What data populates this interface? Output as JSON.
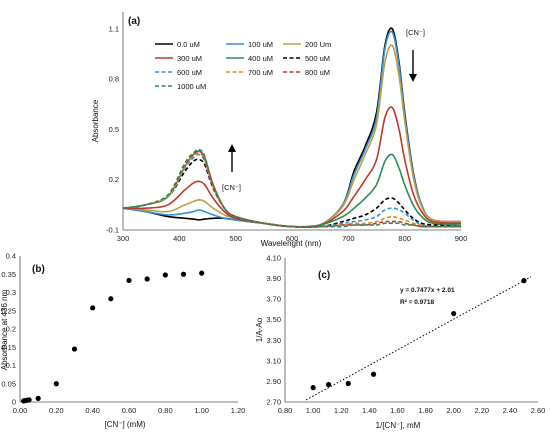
{
  "chart_data": [
    {
      "panel": "(a)",
      "type": "line",
      "xlabel": "Wavelenght (nm)",
      "ylabel": "Absorbance",
      "xlim": [
        300,
        900
      ],
      "ylim": [
        -0.1,
        1.2
      ],
      "xticks": [
        "300",
        "400",
        "500",
        "600",
        "700",
        "800",
        "900"
      ],
      "yticks": [
        "-0.1",
        "0.2",
        "0.5",
        "0.8",
        "1.1"
      ],
      "legend_position": "top-center",
      "arrow_label_top": "[CN⁻]",
      "arrow_label_bottom": "[CN⁻]",
      "x": [
        300,
        340,
        380,
        410,
        425,
        435,
        445,
        460,
        480,
        500,
        550,
        600,
        650,
        690,
        710,
        730,
        750,
        765,
        778,
        790,
        800,
        815,
        830,
        850,
        900
      ],
      "series": [
        {
          "name": "0.0 uM",
          "color": "#000000",
          "dash": "solid",
          "values": [
            0.03,
            0.01,
            -0.02,
            -0.03,
            -0.035,
            -0.04,
            -0.035,
            -0.03,
            -0.03,
            -0.04,
            -0.06,
            -0.08,
            -0.07,
            0.05,
            0.25,
            0.4,
            0.6,
            1.0,
            1.1,
            0.9,
            0.6,
            0.25,
            0.05,
            -0.04,
            -0.05
          ]
        },
        {
          "name": "100 uM",
          "color": "#3a8fd8",
          "dash": "solid",
          "values": [
            0.03,
            0.01,
            -0.01,
            0.0,
            0.01,
            0.02,
            0.01,
            -0.01,
            -0.03,
            -0.04,
            -0.06,
            -0.08,
            -0.07,
            0.05,
            0.23,
            0.38,
            0.57,
            0.98,
            1.08,
            0.88,
            0.58,
            0.24,
            0.05,
            -0.04,
            -0.05
          ]
        },
        {
          "name": "200 Um",
          "color": "#b8a34a",
          "dash": "solid",
          "values": [
            0.03,
            0.02,
            0.01,
            0.05,
            0.07,
            0.08,
            0.07,
            0.03,
            -0.01,
            -0.03,
            -0.06,
            -0.08,
            -0.07,
            0.04,
            0.2,
            0.35,
            0.53,
            0.9,
            1.0,
            0.82,
            0.55,
            0.22,
            0.04,
            -0.04,
            -0.05
          ]
        },
        {
          "name": "300 uM",
          "color": "#c0392b",
          "dash": "solid",
          "values": [
            0.03,
            0.03,
            0.05,
            0.14,
            0.18,
            0.19,
            0.17,
            0.09,
            0.01,
            -0.03,
            -0.06,
            -0.08,
            -0.07,
            0.01,
            0.1,
            0.2,
            0.32,
            0.57,
            0.63,
            0.5,
            0.32,
            0.12,
            0.01,
            -0.05,
            -0.06
          ]
        },
        {
          "name": "400 uM",
          "color": "#2e8b57",
          "dash": "solid",
          "values": [
            0.03,
            0.05,
            0.1,
            0.28,
            0.35,
            0.37,
            0.33,
            0.17,
            0.03,
            -0.02,
            -0.06,
            -0.08,
            -0.07,
            -0.02,
            0.03,
            0.09,
            0.17,
            0.31,
            0.35,
            0.27,
            0.17,
            0.05,
            -0.02,
            -0.06,
            -0.07
          ]
        },
        {
          "name": "500 uM",
          "color": "#000000",
          "dash": "dashed",
          "values": [
            0.03,
            0.05,
            0.1,
            0.25,
            0.31,
            0.32,
            0.29,
            0.15,
            0.03,
            -0.02,
            -0.06,
            -0.08,
            -0.08,
            -0.05,
            -0.03,
            -0.01,
            0.03,
            0.08,
            0.09,
            0.06,
            0.02,
            -0.03,
            -0.06,
            -0.07,
            -0.08
          ]
        },
        {
          "name": "600 uM",
          "color": "#3a8fd8",
          "dash": "dashed",
          "values": [
            0.03,
            0.05,
            0.1,
            0.27,
            0.33,
            0.35,
            0.31,
            0.16,
            0.03,
            -0.02,
            -0.06,
            -0.08,
            -0.08,
            -0.06,
            -0.05,
            -0.04,
            -0.02,
            0.02,
            0.03,
            0.02,
            0.0,
            -0.04,
            -0.07,
            -0.08,
            -0.08
          ]
        },
        {
          "name": "700 uM",
          "color": "#e08a1e",
          "dash": "dashed",
          "values": [
            0.03,
            0.05,
            0.1,
            0.28,
            0.34,
            0.36,
            0.32,
            0.16,
            0.03,
            -0.02,
            -0.06,
            -0.08,
            -0.08,
            -0.07,
            -0.06,
            -0.06,
            -0.05,
            -0.03,
            -0.02,
            -0.03,
            -0.04,
            -0.06,
            -0.07,
            -0.08,
            -0.08
          ]
        },
        {
          "name": "800 uM",
          "color": "#c0392b",
          "dash": "dashed",
          "values": [
            0.03,
            0.05,
            0.11,
            0.29,
            0.35,
            0.37,
            0.33,
            0.17,
            0.03,
            -0.02,
            -0.06,
            -0.08,
            -0.08,
            -0.07,
            -0.07,
            -0.07,
            -0.06,
            -0.05,
            -0.05,
            -0.05,
            -0.06,
            -0.07,
            -0.08,
            -0.08,
            -0.08
          ]
        },
        {
          "name": "1000 uM",
          "color": "#2e8b57",
          "dash": "dashed",
          "values": [
            0.03,
            0.05,
            0.11,
            0.3,
            0.36,
            0.38,
            0.34,
            0.17,
            0.03,
            -0.02,
            -0.06,
            -0.08,
            -0.08,
            -0.08,
            -0.07,
            -0.07,
            -0.07,
            -0.06,
            -0.06,
            -0.06,
            -0.07,
            -0.07,
            -0.08,
            -0.08,
            -0.08
          ]
        }
      ]
    },
    {
      "panel": "(b)",
      "type": "scatter",
      "xlabel": "[CN⁻] (mM)",
      "ylabel": "Absorbance at 436 nm",
      "xlim": [
        0,
        1.2
      ],
      "ylim": [
        0,
        0.4
      ],
      "xticks": [
        "0.00",
        "0.20",
        "0.40",
        "0.60",
        "0.80",
        "1.00",
        "1.20"
      ],
      "yticks": [
        "0",
        "0.05",
        "0.1",
        "0.15",
        "0.2",
        "0.25",
        "0.3",
        "0.35",
        "0.4"
      ],
      "x": [
        0.02,
        0.03,
        0.04,
        0.05,
        0.1,
        0.2,
        0.3,
        0.4,
        0.5,
        0.6,
        0.7,
        0.8,
        0.9,
        1.0
      ],
      "y": [
        0.003,
        0.004,
        0.005,
        0.006,
        0.01,
        0.05,
        0.145,
        0.258,
        0.283,
        0.333,
        0.337,
        0.348,
        0.35,
        0.353
      ]
    },
    {
      "panel": "(c)",
      "type": "scatter",
      "xlabel": "1/[CN⁻], mM",
      "ylabel": "1/A-Ao",
      "xlim": [
        0.8,
        2.6
      ],
      "ylim": [
        2.7,
        4.1
      ],
      "xticks": [
        "0.80",
        "1.00",
        "1.20",
        "1.40",
        "1.60",
        "1.80",
        "2.00",
        "2.20",
        "2.40",
        "2.60"
      ],
      "yticks": [
        "2.70",
        "2.90",
        "3.10",
        "3.30",
        "3.50",
        "3.70",
        "3.90",
        "4.10"
      ],
      "x": [
        1.0,
        1.11,
        1.25,
        1.43,
        2.0,
        2.5
      ],
      "y": [
        2.84,
        2.87,
        2.88,
        2.97,
        3.56,
        3.88
      ],
      "trendline": {
        "slope": 0.7477,
        "intercept": 2.01
      },
      "equation": "y = 0.7477x + 2.01",
      "r2": "R² = 0.9718"
    }
  ]
}
